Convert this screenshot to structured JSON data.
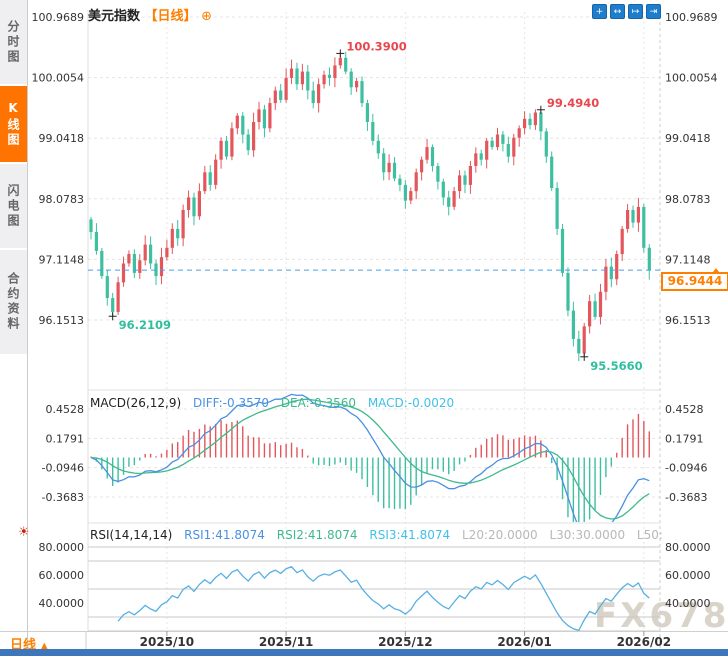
{
  "sidebar": {
    "tabs": [
      {
        "label": "分时图",
        "selected": false
      },
      {
        "label": "K线图",
        "selected": true
      },
      {
        "label": "闪电图",
        "selected": false
      },
      {
        "label": "合约资料",
        "selected": false
      }
    ]
  },
  "header": {
    "title": "美元指数",
    "period_tag": "【日线】",
    "add_icon": "⊕"
  },
  "toolbar": {
    "icons": [
      {
        "name": "crosshair-icon",
        "glyph": "+"
      },
      {
        "name": "fit-width-icon",
        "glyph": "↔"
      },
      {
        "name": "auto-scale-icon",
        "glyph": "↦"
      },
      {
        "name": "pan-right-icon",
        "glyph": "⇥"
      }
    ]
  },
  "macd_header": {
    "title": "MACD(26,12,9)",
    "diff": "DIFF:-0.3570",
    "dea": "DEA:-0.3560",
    "macd": "MACD:-0.0020"
  },
  "rsi_header": {
    "title": "RSI(14,14,14)",
    "rsi1": "RSI1:41.8074",
    "rsi2": "RSI2:41.8074",
    "rsi3": "RSI3:41.8074",
    "l20": "L20:20.0000",
    "l30": "L30:30.0000",
    "l50": "L50:"
  },
  "rsi_gear_icon": "☀",
  "price_tag": {
    "value": "96.9444"
  },
  "bottom": {
    "period_label": "日线",
    "arrow": "▲"
  },
  "watermark": "FX678",
  "chart_data": {
    "type": "candlestick",
    "title": "美元指数 日线 (US Dollar Index, daily)",
    "x_ticks": [
      {
        "label": "2025/10",
        "index": 14
      },
      {
        "label": "2025/11",
        "index": 36
      },
      {
        "label": "2025/12",
        "index": 58
      },
      {
        "label": "2026/01",
        "index": 80
      },
      {
        "label": "2026/02",
        "index": 102
      }
    ],
    "price_ticks": [
      "100.9689",
      "100.0054",
      "99.0418",
      "98.0783",
      "97.1148",
      "96.1513"
    ],
    "open_first": 97.75,
    "closes": [
      97.55,
      97.25,
      96.85,
      96.5,
      96.28,
      96.75,
      97.05,
      97.2,
      96.9,
      97.1,
      97.35,
      97.05,
      96.85,
      97.15,
      97.3,
      97.6,
      97.45,
      97.9,
      98.1,
      97.8,
      98.2,
      98.5,
      98.3,
      98.7,
      99.0,
      98.75,
      99.2,
      99.4,
      99.1,
      98.85,
      99.3,
      99.5,
      99.2,
      99.6,
      99.8,
      99.65,
      100.0,
      100.15,
      99.9,
      100.1,
      99.8,
      99.6,
      99.9,
      100.05,
      100.0,
      100.2,
      100.32,
      100.1,
      99.85,
      99.95,
      99.6,
      99.3,
      99.0,
      98.8,
      98.5,
      98.65,
      98.4,
      98.3,
      98.05,
      98.2,
      98.5,
      98.7,
      98.9,
      98.6,
      98.35,
      98.1,
      97.95,
      98.2,
      98.45,
      98.3,
      98.6,
      98.8,
      98.7,
      99.0,
      98.9,
      99.1,
      98.95,
      98.75,
      99.05,
      99.2,
      99.35,
      99.25,
      99.45,
      99.15,
      98.75,
      98.25,
      97.6,
      96.9,
      96.3,
      95.85,
      95.62,
      96.05,
      96.45,
      96.2,
      96.6,
      97.0,
      96.8,
      97.2,
      97.6,
      97.9,
      97.7,
      97.95,
      97.3,
      96.94
    ],
    "extreme_overrides": {
      "highs": {
        "46": 100.39,
        "83": 99.494
      },
      "lows": {
        "4": 96.2109,
        "91": 95.566
      }
    },
    "annotations": [
      {
        "text": "100.3900",
        "index": 46,
        "side": "high"
      },
      {
        "text": "99.4940",
        "index": 83,
        "side": "high"
      },
      {
        "text": "96.2109",
        "index": 4,
        "side": "low"
      },
      {
        "text": "95.5660",
        "index": 91,
        "side": "low"
      }
    ],
    "current_price": 96.9444,
    "macd": {
      "params": [
        26,
        12,
        9
      ],
      "ticks": [
        "0.4528",
        "0.1791",
        "-0.0946",
        "-0.3683"
      ],
      "diff": -0.357,
      "dea": -0.356,
      "hist": -0.002
    },
    "rsi": {
      "params": [
        14,
        14,
        14
      ],
      "ticks": [
        "80.0000",
        "60.0000",
        "40.0000"
      ],
      "ref_lines": [
        80,
        70,
        50,
        30,
        20
      ],
      "value": 41.8074
    },
    "colors": {
      "up": "#e2565c",
      "down": "#3dbfa0",
      "diff_line": "#4a90e2",
      "dea_line": "#3fb98d",
      "rsi_line": "#58b0e3",
      "price_line": "#4aa0e8",
      "accent_orange": "#ff8000",
      "annotation_red": "#e8474d",
      "annotation_green": "#2fbf9f",
      "grid": "#e5e5e5",
      "ref_line": "#c9c9c9"
    }
  }
}
